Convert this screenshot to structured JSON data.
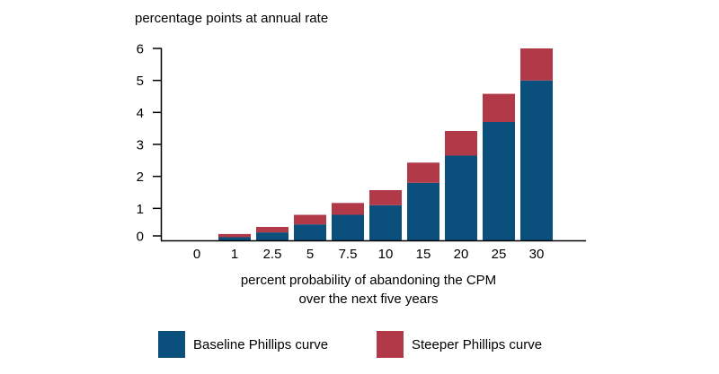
{
  "chart_data": {
    "type": "bar",
    "stacked": true,
    "title": "",
    "ylabel": "percentage points at annual rate",
    "xlabel_lines": [
      "percent probability of abandoning the CPM",
      "over the next five years"
    ],
    "categories": [
      "0",
      "1",
      "2.5",
      "5",
      "7.5",
      "10",
      "15",
      "20",
      "25",
      "30"
    ],
    "yticks": [
      "0",
      "1",
      "2",
      "3",
      "4",
      "5",
      "6"
    ],
    "ylim": [
      0,
      6
    ],
    "series": [
      {
        "name": "Baseline Phillips curve",
        "color": "#0b4f7c",
        "values": [
          0,
          0.1,
          0.25,
          0.5,
          0.8,
          1.1,
          1.8,
          2.65,
          3.7,
          5.0
        ]
      },
      {
        "name": "Steeper Phillips curve",
        "color": "#b23a48",
        "values": [
          0,
          0.1,
          0.17,
          0.3,
          0.37,
          0.47,
          0.63,
          0.77,
          0.88,
          1.0
        ]
      }
    ],
    "legend_position": "bottom"
  }
}
